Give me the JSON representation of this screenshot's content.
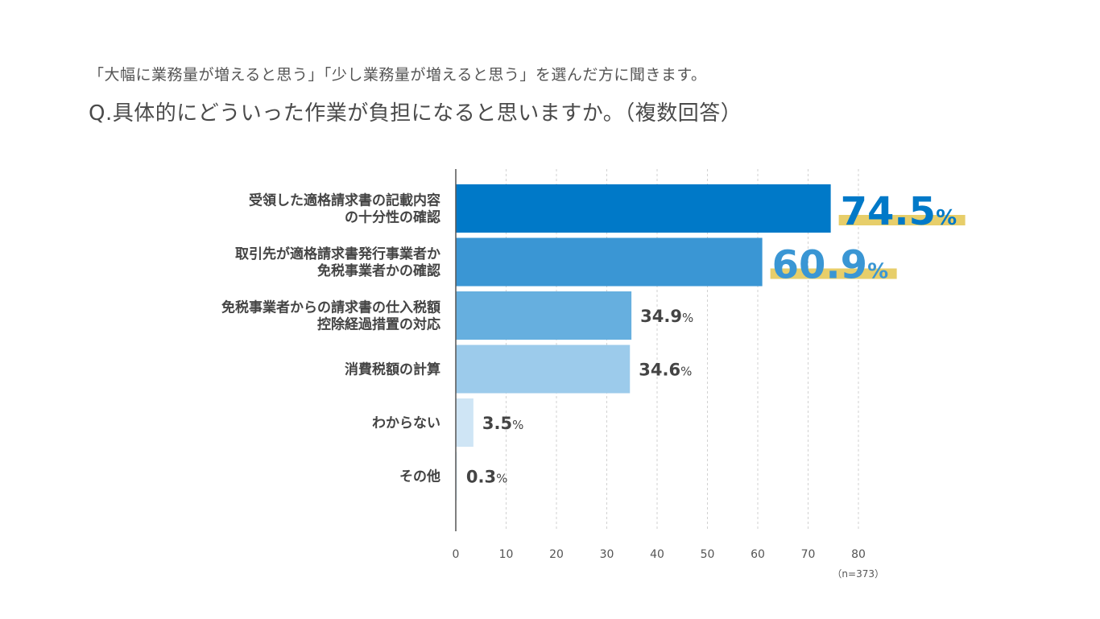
{
  "subtitle": "「大幅に業務量が増えると思う」「少し業務量が増えると思う」を選んだ方に聞きます。",
  "question": "Q.具体的にどういった作業が負担になると思いますか。（複数回答）",
  "chart_data": {
    "type": "bar",
    "orientation": "horizontal",
    "categories": [
      [
        "受領した適格請求書の記載内容",
        "の十分性の確認"
      ],
      [
        "取引先が適格請求書発行事業者か",
        "免税事業者かの確認"
      ],
      [
        "免税事業者からの請求書の仕入税額",
        "控除経過措置の対応"
      ],
      [
        "消費税額の計算"
      ],
      [
        "わからない"
      ],
      [
        "その他"
      ]
    ],
    "values": [
      74.5,
      60.9,
      34.9,
      34.6,
      3.5,
      0.3
    ],
    "value_suffix": "%",
    "highlighted": [
      true,
      true,
      false,
      false,
      false,
      false
    ],
    "bar_colors": [
      "#0079c8",
      "#3a96d4",
      "#66afdf",
      "#9ccbeb",
      "#cfe5f5",
      "#e6f2fa"
    ],
    "label_colors": [
      "#0079c8",
      "#3a96d4",
      "#444444",
      "#444444",
      "#444444",
      "#444444"
    ],
    "highlight_underline_color": "#e7ce6a",
    "xlim": [
      0,
      80
    ],
    "xticks": [
      0,
      10,
      20,
      30,
      40,
      50,
      60,
      70,
      80
    ],
    "grid": true,
    "note": "（n=373）"
  }
}
